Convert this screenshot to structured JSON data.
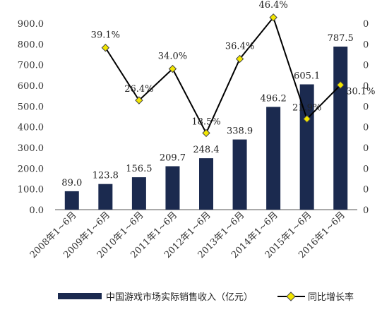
{
  "chart_data": {
    "type": "bar+line",
    "categories": [
      "2008年1~6月",
      "2009年1~6月",
      "2010年1~6月",
      "2011年1~6月",
      "2012年1~6月",
      "2013年1~6月",
      "2014年1~6月",
      "2015年1~6月",
      "2016年1~6月"
    ],
    "series": [
      {
        "name": "中国游戏市场实际销售收入（亿元）",
        "type": "bar",
        "axis": "left",
        "values": [
          89.0,
          123.8,
          156.5,
          209.7,
          248.4,
          338.9,
          496.2,
          605.1,
          787.5
        ],
        "labels": [
          "89.0",
          "123.8",
          "156.5",
          "209.7",
          "248.4",
          "338.9",
          "496.2",
          "605.1",
          "787.5"
        ]
      },
      {
        "name": "同比增长率",
        "type": "line",
        "axis": "right",
        "values": [
          null,
          39.1,
          26.4,
          34.0,
          18.5,
          36.4,
          46.4,
          21.9,
          30.1
        ],
        "labels": [
          "",
          "39.1%",
          "26.4%",
          "34.0%",
          "18.5%",
          "36.4%",
          "46.4%",
          "21.9%",
          "30.1%"
        ]
      }
    ],
    "ylim": [
      0,
      900
    ],
    "yticks": [
      "0.0",
      "100.0",
      "200.0",
      "300.0",
      "400.0",
      "500.0",
      "600.0",
      "700.0",
      "800.0",
      "900.0"
    ],
    "y2lim": [
      0,
      45
    ],
    "y2ticks": [
      "0",
      "0",
      "0",
      "0",
      "0",
      "0",
      "0",
      "0",
      "0",
      "0"
    ],
    "legend": "bottom",
    "grid": false,
    "colors": {
      "bar": "#1b2a4f",
      "line": "#000000",
      "marker_fill": "#f2e600",
      "marker_stroke": "#444444"
    }
  }
}
